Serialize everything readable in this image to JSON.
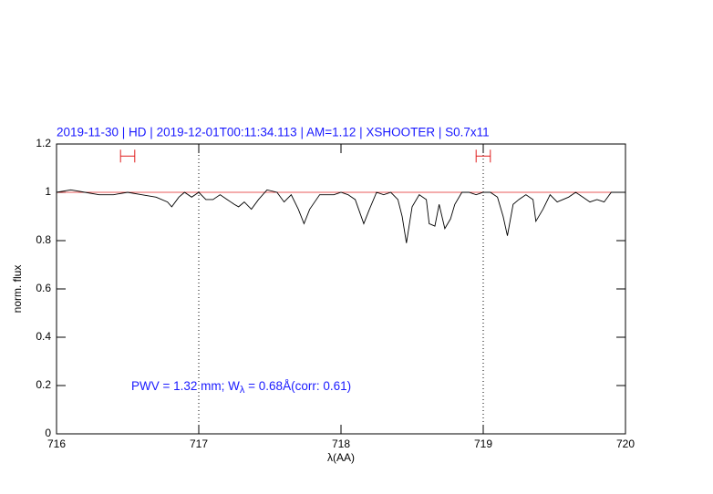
{
  "chart_data": {
    "type": "line",
    "title": "2019-11-30 | HD | 2019-12-01T00:11:34.113 | AM=1.12 | XSHOOTER | S0.7x11",
    "xlabel": "λ(AA)",
    "ylabel": "norm. flux",
    "annotation": [
      "PWV = 1.32 mm; W",
      "λ",
      " = 0.68Å(corr: 0.61)"
    ],
    "xlim": [
      716,
      720
    ],
    "ylim": [
      0,
      1.2
    ],
    "xticks": [
      716,
      717,
      718,
      719,
      720
    ],
    "yticks": [
      0,
      0.2,
      0.4,
      0.6,
      0.8,
      1,
      1.2
    ],
    "vlines": [
      717,
      719
    ],
    "continuum": 1,
    "continuum_color": "#e02020",
    "markers": [
      {
        "x": 716.5,
        "xerr": 0.05,
        "y": 1.15
      },
      {
        "x": 719.0,
        "xerr": 0.05,
        "y": 1.15
      }
    ],
    "marker_color": "#e02020",
    "series": [
      {
        "name": "flux",
        "color": "#000000",
        "x": [
          716.0,
          716.1,
          716.2,
          716.3,
          716.4,
          716.5,
          716.6,
          716.7,
          716.78,
          716.81,
          716.86,
          716.9,
          716.95,
          717.0,
          717.05,
          717.1,
          717.15,
          717.2,
          717.25,
          717.28,
          717.32,
          717.37,
          717.42,
          717.48,
          717.55,
          717.6,
          717.65,
          717.7,
          717.74,
          717.78,
          717.85,
          717.95,
          718.0,
          718.05,
          718.1,
          718.13,
          718.16,
          718.2,
          718.25,
          718.3,
          718.35,
          718.4,
          718.43,
          718.46,
          718.5,
          718.55,
          718.6,
          718.62,
          718.66,
          718.69,
          718.73,
          718.77,
          718.8,
          718.85,
          718.9,
          718.95,
          719.0,
          719.05,
          719.1,
          719.14,
          719.17,
          719.21,
          719.25,
          719.3,
          719.35,
          719.37,
          719.42,
          719.47,
          719.52,
          719.56,
          719.6,
          719.65,
          719.7,
          719.75,
          719.8,
          719.85,
          719.9,
          719.95,
          720.0
        ],
        "values": [
          1.0,
          1.01,
          1.0,
          0.99,
          0.99,
          1.0,
          0.99,
          0.98,
          0.96,
          0.94,
          0.98,
          1.0,
          0.98,
          1.0,
          0.97,
          0.97,
          0.99,
          0.97,
          0.95,
          0.94,
          0.96,
          0.93,
          0.97,
          1.01,
          1.0,
          0.96,
          0.99,
          0.93,
          0.87,
          0.93,
          0.99,
          0.99,
          1.0,
          0.99,
          0.97,
          0.92,
          0.87,
          0.93,
          1.0,
          0.99,
          1.0,
          0.97,
          0.9,
          0.79,
          0.94,
          0.99,
          0.97,
          0.87,
          0.86,
          0.95,
          0.85,
          0.89,
          0.95,
          1.0,
          1.0,
          0.99,
          1.0,
          1.0,
          0.98,
          0.9,
          0.82,
          0.95,
          0.97,
          0.99,
          0.97,
          0.88,
          0.93,
          0.99,
          0.96,
          0.97,
          0.98,
          1.0,
          0.98,
          0.96,
          0.97,
          0.96,
          1.0,
          1.0,
          1.0
        ]
      }
    ]
  }
}
